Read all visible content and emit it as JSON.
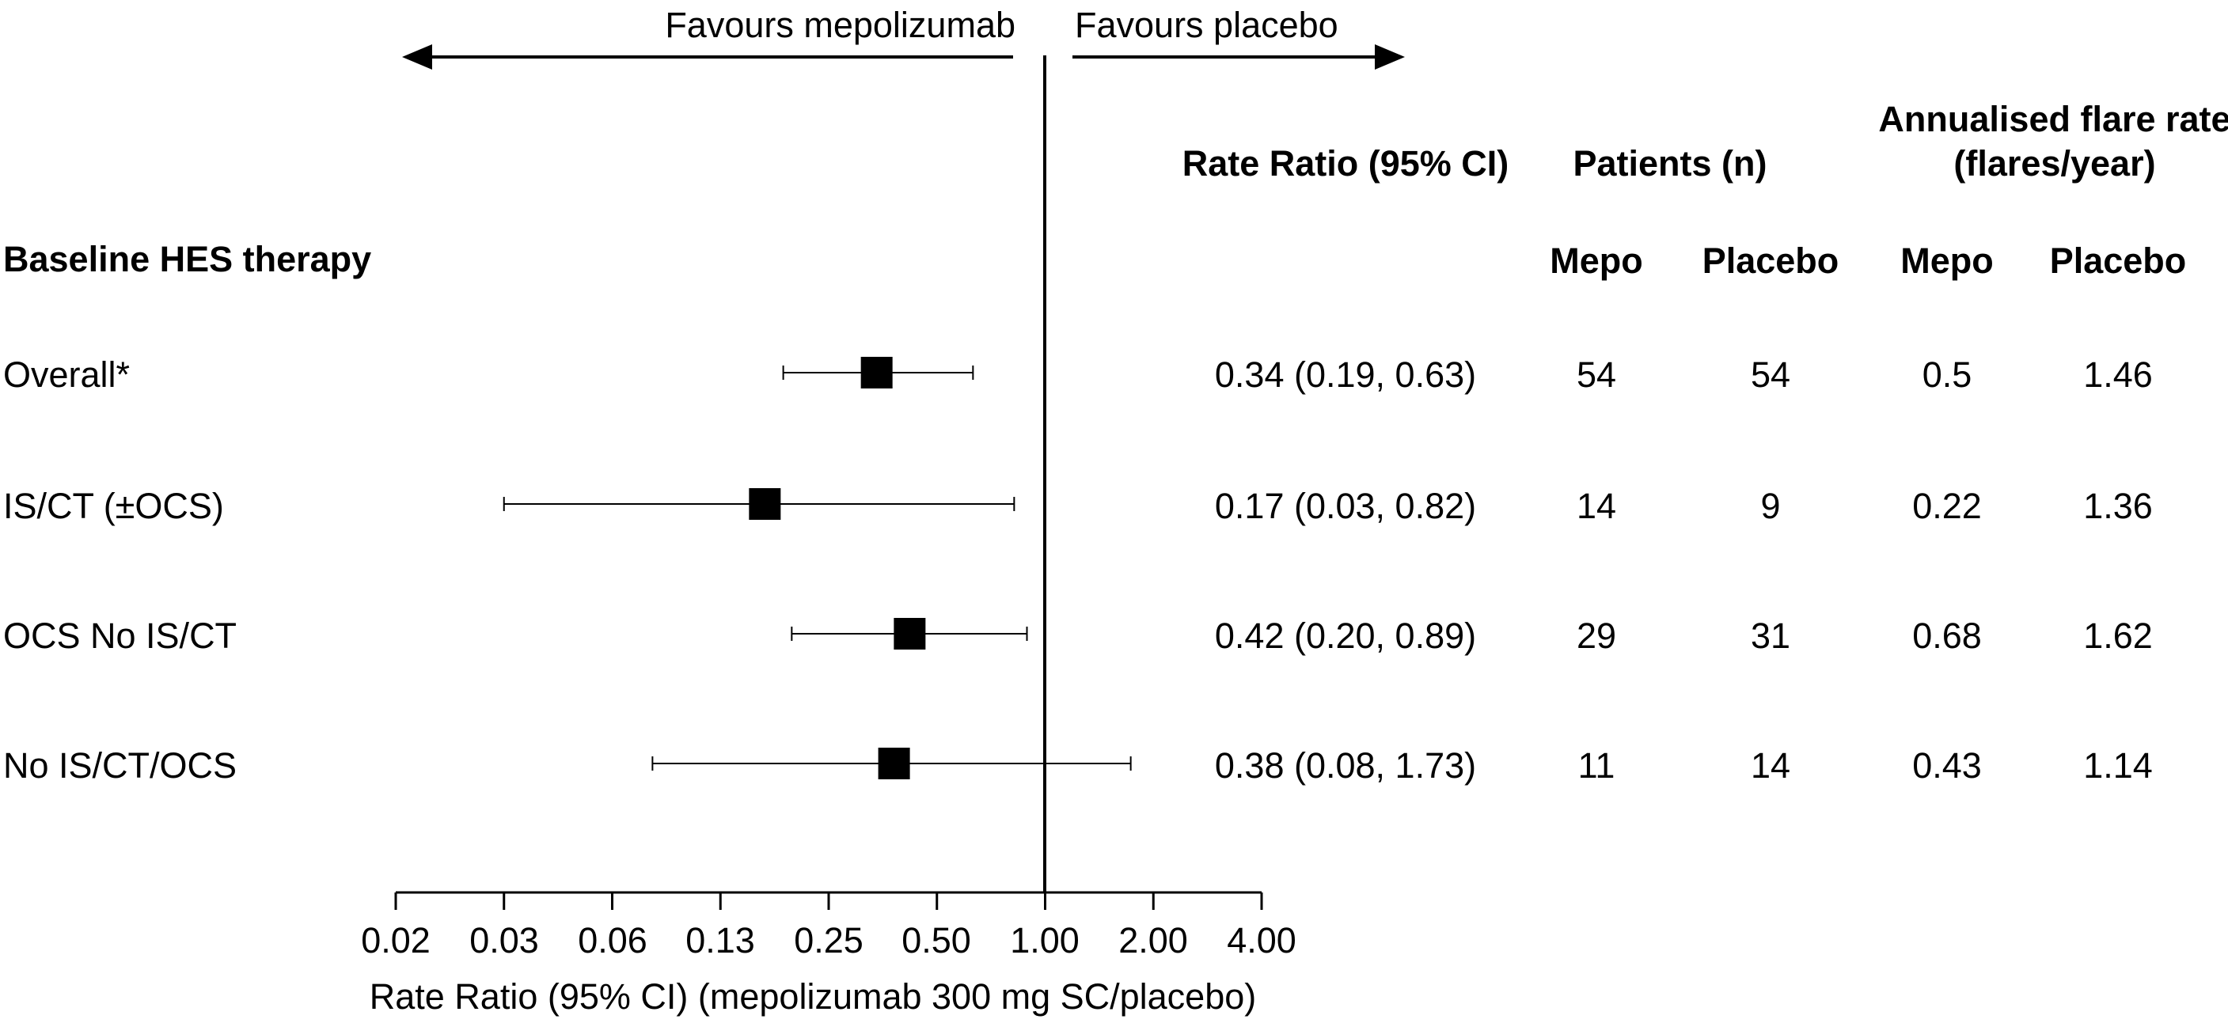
{
  "chart_data": {
    "type": "forest",
    "scale": "log",
    "reference_value": 1.0,
    "direction_labels": {
      "left": "Favours mepolizumab",
      "right": "Favours placebo"
    },
    "xlabel": "Rate Ratio (95% CI) (mepolizumab 300 mg SC/placebo)",
    "xlim": [
      0.02,
      4.0
    ],
    "xticks": [
      0.02,
      0.03,
      0.06,
      0.13,
      0.25,
      0.5,
      1.0,
      2.0,
      4.0
    ],
    "xtick_labels": [
      "0.02",
      "0.03",
      "0.06",
      "0.13",
      "0.25",
      "0.50",
      "1.00",
      "2.00",
      "4.00"
    ],
    "row_header": "Baseline HES therapy",
    "column_headers": {
      "rate_ratio": "Rate Ratio (95% CI)",
      "patients": "Patients (n)",
      "flare_rate_line1": "Annualised flare rate",
      "flare_rate_line2": "(flares/year)",
      "mepo": "Mepo",
      "placebo": "Placebo"
    },
    "rows": [
      {
        "label": "Overall*",
        "estimate": 0.34,
        "ci_low": 0.19,
        "ci_high": 0.63,
        "rr_text": "0.34 (0.19, 0.63)",
        "n_mepo": "54",
        "n_placebo": "54",
        "rate_mepo": "0.5",
        "rate_placebo": "1.46"
      },
      {
        "label": "IS/CT (±OCS)",
        "estimate": 0.17,
        "ci_low": 0.03,
        "ci_high": 0.82,
        "rr_text": "0.17 (0.03, 0.82)",
        "n_mepo": "14",
        "n_placebo": "9",
        "rate_mepo": "0.22",
        "rate_placebo": "1.36"
      },
      {
        "label": "OCS No IS/CT",
        "estimate": 0.42,
        "ci_low": 0.2,
        "ci_high": 0.89,
        "rr_text": "0.42 (0.20, 0.89)",
        "n_mepo": "29",
        "n_placebo": "31",
        "rate_mepo": "0.68",
        "rate_placebo": "1.62"
      },
      {
        "label": "No IS/CT/OCS",
        "estimate": 0.38,
        "ci_low": 0.08,
        "ci_high": 1.73,
        "rr_text": "0.38 (0.08, 1.73)",
        "n_mepo": "11",
        "n_placebo": "14",
        "rate_mepo": "0.43",
        "rate_placebo": "1.14"
      }
    ]
  }
}
